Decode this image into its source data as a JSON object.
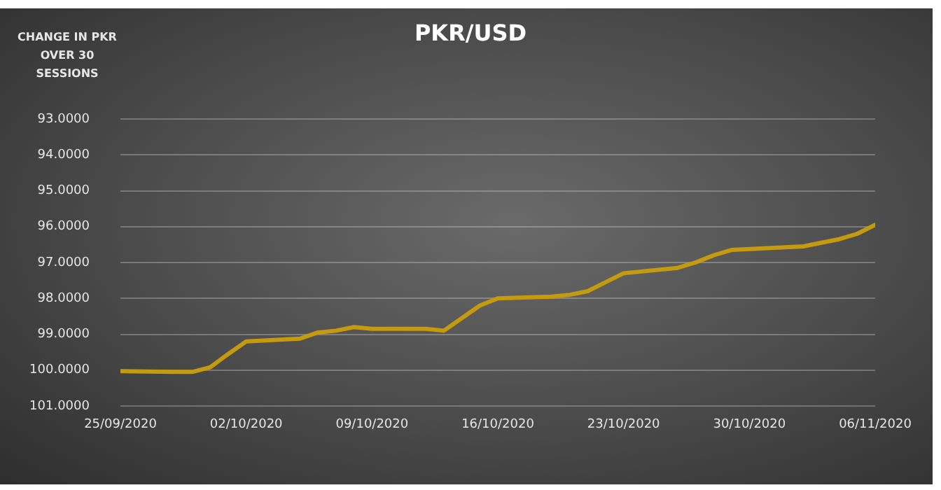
{
  "chart_data": {
    "type": "line",
    "title": "PKR/USD",
    "ylabel": "CHANGE IN PKR OVER 30 SESSIONS",
    "x": [
      "2020-09-25",
      "2020-09-28",
      "2020-09-29",
      "2020-09-30",
      "2020-10-01",
      "2020-10-02",
      "2020-10-05",
      "2020-10-06",
      "2020-10-07",
      "2020-10-08",
      "2020-10-09",
      "2020-10-12",
      "2020-10-13",
      "2020-10-14",
      "2020-10-15",
      "2020-10-16",
      "2020-10-19",
      "2020-10-20",
      "2020-10-21",
      "2020-10-22",
      "2020-10-23",
      "2020-10-26",
      "2020-10-27",
      "2020-10-28",
      "2020-10-29",
      "2020-11-02",
      "2020-11-03",
      "2020-11-04",
      "2020-11-05",
      "2020-11-06"
    ],
    "series": [
      {
        "color": "#c49a0f",
        "values": [
          100.03,
          100.05,
          100.05,
          99.92,
          99.55,
          99.2,
          99.12,
          98.95,
          98.9,
          98.8,
          98.85,
          98.85,
          98.9,
          98.55,
          98.2,
          98.0,
          97.95,
          97.9,
          97.8,
          97.55,
          97.3,
          97.15,
          97.0,
          96.8,
          96.65,
          96.55,
          96.45,
          96.35,
          96.2,
          95.95
        ]
      }
    ],
    "xlim": [
      "2020-09-25",
      "2020-11-06"
    ],
    "xticks": [
      {
        "value": "2020-09-25",
        "label": "25/09/2020"
      },
      {
        "value": "2020-10-02",
        "label": "02/10/2020"
      },
      {
        "value": "2020-10-09",
        "label": "09/10/2020"
      },
      {
        "value": "2020-10-16",
        "label": "16/10/2020"
      },
      {
        "value": "2020-10-23",
        "label": "23/10/2020"
      },
      {
        "value": "2020-10-30",
        "label": "30/10/2020"
      },
      {
        "value": "2020-11-06",
        "label": "06/11/2020"
      }
    ],
    "ylim": [
      101,
      93
    ],
    "yticks": [
      {
        "value": 93,
        "label": "93.0000"
      },
      {
        "value": 94,
        "label": "94.0000"
      },
      {
        "value": 95,
        "label": "95.0000"
      },
      {
        "value": 96,
        "label": "96.0000"
      },
      {
        "value": 97,
        "label": "97.0000"
      },
      {
        "value": 98,
        "label": "98.0000"
      },
      {
        "value": 99,
        "label": "99.0000"
      },
      {
        "value": 100,
        "label": "100.0000"
      },
      {
        "value": 101,
        "label": "101.0000"
      }
    ],
    "grid": "y",
    "marker": "none",
    "line_style": "solid",
    "legend": false
  }
}
